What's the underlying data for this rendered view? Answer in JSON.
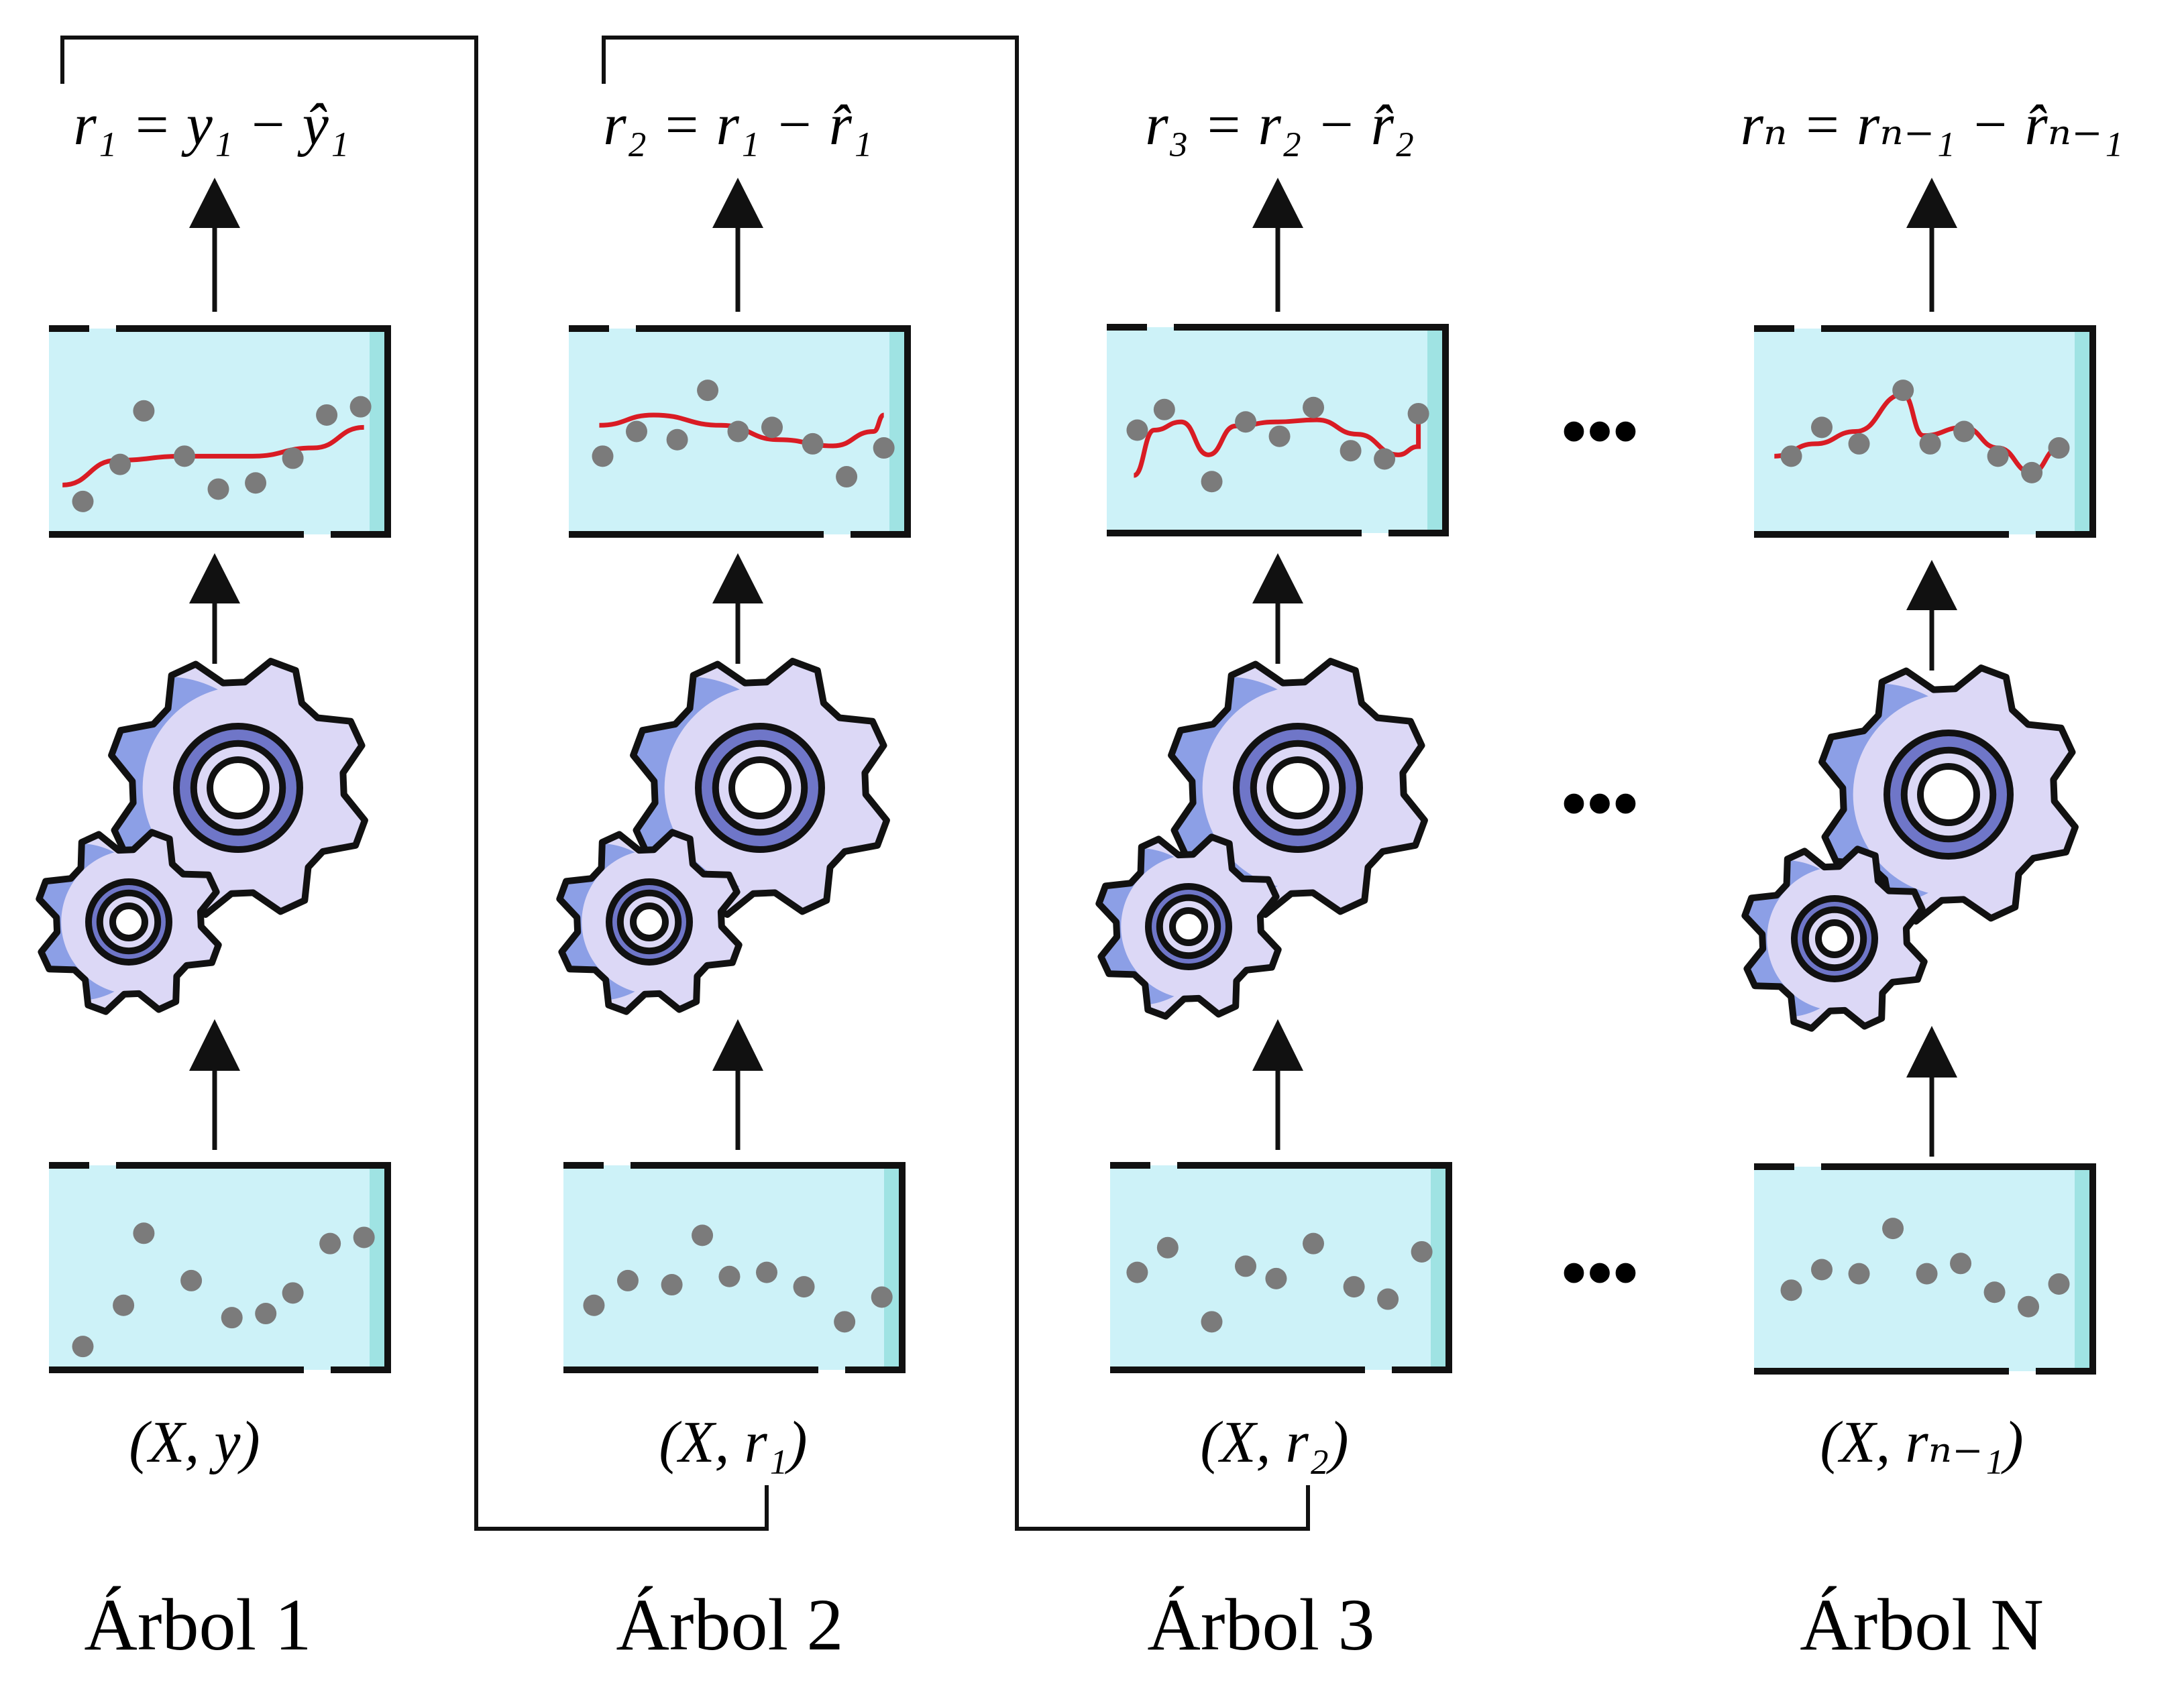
{
  "columns": [
    {
      "tree_label": "Árbol 1",
      "input_label": "(X, y)",
      "output_label": "r₁ = y₁ − ŷ₁",
      "input_points": [
        [
          0.1,
          0.88
        ],
        [
          0.22,
          0.68
        ],
        [
          0.28,
          0.33
        ],
        [
          0.42,
          0.56
        ],
        [
          0.54,
          0.74
        ],
        [
          0.64,
          0.72
        ],
        [
          0.72,
          0.62
        ],
        [
          0.83,
          0.38
        ],
        [
          0.93,
          0.35
        ]
      ],
      "model_points": [
        [
          0.1,
          0.84
        ],
        [
          0.21,
          0.66
        ],
        [
          0.28,
          0.4
        ],
        [
          0.4,
          0.62
        ],
        [
          0.5,
          0.78
        ],
        [
          0.61,
          0.75
        ],
        [
          0.72,
          0.63
        ],
        [
          0.82,
          0.42
        ],
        [
          0.92,
          0.38
        ]
      ],
      "curve": [
        [
          0.04,
          0.76
        ],
        [
          0.2,
          0.64
        ],
        [
          0.4,
          0.62
        ],
        [
          0.6,
          0.62
        ],
        [
          0.78,
          0.58
        ],
        [
          0.93,
          0.48
        ]
      ]
    },
    {
      "tree_label": "Árbol 2",
      "input_label": "(X, r₁)",
      "output_label": "r₂ = r₁ − r̂₁",
      "input_points": [
        [
          0.09,
          0.68
        ],
        [
          0.19,
          0.56
        ],
        [
          0.32,
          0.58
        ],
        [
          0.41,
          0.34
        ],
        [
          0.49,
          0.54
        ],
        [
          0.6,
          0.52
        ],
        [
          0.71,
          0.59
        ],
        [
          0.83,
          0.76
        ],
        [
          0.94,
          0.64
        ]
      ],
      "model_points": [
        [
          0.1,
          0.62
        ],
        [
          0.2,
          0.5
        ],
        [
          0.32,
          0.54
        ],
        [
          0.41,
          0.3
        ],
        [
          0.5,
          0.5
        ],
        [
          0.6,
          0.48
        ],
        [
          0.72,
          0.56
        ],
        [
          0.82,
          0.72
        ],
        [
          0.93,
          0.58
        ]
      ],
      "curve": [
        [
          0.09,
          0.47
        ],
        [
          0.25,
          0.42
        ],
        [
          0.45,
          0.47
        ],
        [
          0.62,
          0.54
        ],
        [
          0.78,
          0.57
        ],
        [
          0.9,
          0.5
        ],
        [
          0.93,
          0.42
        ]
      ]
    },
    {
      "tree_label": "Árbol 3",
      "input_label": "(X, r₂)",
      "output_label": "r₃ = r₂ − r̂₂",
      "input_points": [
        [
          0.08,
          0.52
        ],
        [
          0.17,
          0.4
        ],
        [
          0.3,
          0.76
        ],
        [
          0.4,
          0.49
        ],
        [
          0.49,
          0.55
        ],
        [
          0.6,
          0.38
        ],
        [
          0.72,
          0.59
        ],
        [
          0.82,
          0.65
        ],
        [
          0.92,
          0.42
        ]
      ],
      "model_points": [
        [
          0.09,
          0.5
        ],
        [
          0.17,
          0.4
        ],
        [
          0.31,
          0.75
        ],
        [
          0.41,
          0.46
        ],
        [
          0.51,
          0.53
        ],
        [
          0.61,
          0.39
        ],
        [
          0.72,
          0.6
        ],
        [
          0.82,
          0.64
        ],
        [
          0.92,
          0.42
        ]
      ],
      "curve": [
        [
          0.08,
          0.72
        ],
        [
          0.14,
          0.5
        ],
        [
          0.22,
          0.46
        ],
        [
          0.3,
          0.62
        ],
        [
          0.38,
          0.48
        ],
        [
          0.5,
          0.46
        ],
        [
          0.62,
          0.45
        ],
        [
          0.74,
          0.52
        ],
        [
          0.86,
          0.62
        ],
        [
          0.92,
          0.58
        ],
        [
          0.92,
          0.46
        ]
      ]
    },
    {
      "tree_label": "Árbol N",
      "input_label": "(X, rₙ₋₁)",
      "output_label": "rₙ = rₙ₋₁ − r̂ₙ₋₁",
      "input_points": [
        [
          0.11,
          0.6
        ],
        [
          0.2,
          0.5
        ],
        [
          0.31,
          0.52
        ],
        [
          0.41,
          0.3
        ],
        [
          0.51,
          0.52
        ],
        [
          0.61,
          0.47
        ],
        [
          0.71,
          0.61
        ],
        [
          0.81,
          0.68
        ],
        [
          0.9,
          0.57
        ]
      ],
      "model_points": [
        [
          0.11,
          0.62
        ],
        [
          0.2,
          0.48
        ],
        [
          0.31,
          0.56
        ],
        [
          0.44,
          0.3
        ],
        [
          0.52,
          0.56
        ],
        [
          0.62,
          0.5
        ],
        [
          0.72,
          0.62
        ],
        [
          0.82,
          0.7
        ],
        [
          0.9,
          0.58
        ]
      ],
      "curve": [
        [
          0.06,
          0.62
        ],
        [
          0.18,
          0.56
        ],
        [
          0.3,
          0.5
        ],
        [
          0.44,
          0.32
        ],
        [
          0.5,
          0.52
        ],
        [
          0.62,
          0.48
        ],
        [
          0.72,
          0.58
        ],
        [
          0.82,
          0.7
        ],
        [
          0.9,
          0.58
        ]
      ]
    }
  ],
  "ellipsis": "•••",
  "colors": {
    "box_fill": "#cdf2f8",
    "box_edge": "#9fe3e3",
    "stroke": "#111111",
    "point": "#7b7b7b",
    "curve": "#d91c24",
    "gear_light": "#dcd8f6",
    "gear_dark": "#8c9fe6",
    "gear_ring": "#6f76c8"
  }
}
